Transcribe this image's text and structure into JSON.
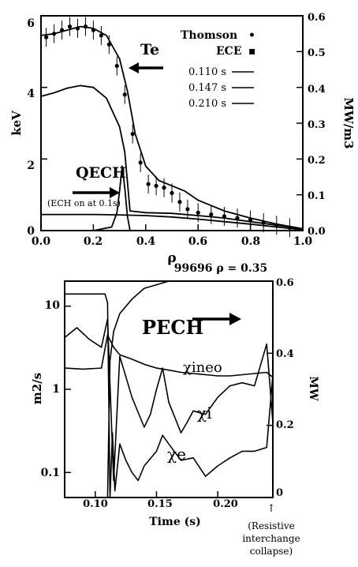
{
  "chart_data": [
    {
      "type": "line",
      "xlabel": "ρ",
      "ylabel": "keV",
      "y2label": "MW/m3",
      "xlim": [
        0,
        1
      ],
      "ylim": [
        0,
        6
      ],
      "y2lim": [
        0,
        0.6
      ],
      "xticks": [
        "0.0",
        "0.2",
        "0.4",
        "0.6",
        "0.8",
        "1.0"
      ],
      "yticks": [
        "0",
        "2",
        "4",
        "6"
      ],
      "y2ticks": [
        "0.0",
        "0.1",
        "0.2",
        "0.3",
        "0.4",
        "0.5",
        "0.6"
      ],
      "legend_position": "top-right",
      "legend_markers": [
        {
          "label": "Thomson",
          "symbol": "•"
        },
        {
          "label": "ECE",
          "symbol": "▪"
        }
      ],
      "legend_times": [
        "0.110 s",
        "0.147 s",
        "0.210 s"
      ],
      "annotations": {
        "te_label": "Te",
        "q_label": "QECH",
        "ech_note": "(ECH on at 0.1s)"
      },
      "series": [
        {
          "name": "0.110 s",
          "x": [
            0,
            0.1,
            0.2,
            0.3,
            0.4,
            0.5,
            0.6,
            0.7,
            0.8,
            0.9,
            1.0
          ],
          "values": [
            0.45,
            0.45,
            0.45,
            0.44,
            0.42,
            0.38,
            0.32,
            0.25,
            0.18,
            0.1,
            0.02
          ]
        },
        {
          "name": "0.147 s",
          "x": [
            0,
            0.05,
            0.1,
            0.15,
            0.2,
            0.25,
            0.3,
            0.32,
            0.34,
            0.4,
            0.5,
            0.6,
            0.7,
            0.8,
            0.9,
            1.0
          ],
          "values": [
            3.75,
            3.85,
            3.98,
            4.05,
            4.0,
            3.7,
            2.9,
            2.2,
            0.55,
            0.5,
            0.48,
            0.42,
            0.35,
            0.25,
            0.15,
            0.05
          ]
        },
        {
          "name": "0.210 s",
          "x": [
            0,
            0.05,
            0.1,
            0.15,
            0.2,
            0.25,
            0.3,
            0.33,
            0.36,
            0.4,
            0.45,
            0.5,
            0.55,
            0.6,
            0.7,
            0.8,
            0.9,
            1.0
          ],
          "values": [
            5.45,
            5.5,
            5.6,
            5.7,
            5.65,
            5.45,
            4.8,
            3.9,
            2.7,
            1.8,
            1.4,
            1.25,
            1.1,
            0.85,
            0.55,
            0.35,
            0.18,
            0.05
          ]
        },
        {
          "name": "QECH",
          "axis": "right",
          "x": [
            0.0,
            0.2,
            0.27,
            0.29,
            0.3,
            0.31,
            0.32,
            0.33,
            0.34
          ],
          "values": [
            0.0,
            0.0,
            0.01,
            0.05,
            0.11,
            0.18,
            0.12,
            0.04,
            0.0
          ]
        }
      ],
      "points": {
        "x": [
          0.02,
          0.05,
          0.08,
          0.11,
          0.14,
          0.17,
          0.2,
          0.23,
          0.26,
          0.29,
          0.32,
          0.35,
          0.38,
          0.41,
          0.44,
          0.47,
          0.5,
          0.53,
          0.56,
          0.6,
          0.65,
          0.7,
          0.75,
          0.8,
          0.85,
          0.9,
          0.95
        ],
        "y": [
          5.4,
          5.5,
          5.6,
          5.7,
          5.65,
          5.7,
          5.6,
          5.45,
          5.2,
          4.6,
          3.8,
          2.7,
          1.9,
          1.3,
          1.25,
          1.2,
          1.05,
          0.8,
          0.6,
          0.5,
          0.45,
          0.4,
          0.35,
          0.3,
          0.22,
          0.15,
          0.08
        ]
      }
    },
    {
      "type": "line",
      "title": "99696  ρ = 0.35",
      "xlabel": "Time (s)",
      "ylabel": "m2/s",
      "y2label": "MW",
      "xlim": [
        0.075,
        0.245
      ],
      "ylim": [
        0.05,
        20
      ],
      "ylog": true,
      "y2lim": [
        0,
        0.6
      ],
      "xticks": [
        "0.10",
        "0.15",
        "0.20"
      ],
      "yticks": [
        "0.1",
        "1",
        "10"
      ],
      "y2ticks": [
        "0",
        "0.2",
        "0.4",
        "0.6"
      ],
      "annotations": {
        "p_label": "PECH",
        "chi_neo_label": "χineo",
        "chi_i_label": "χi",
        "chi_e_label": "χe",
        "resistive_note": [
          "(Resistive",
          "interchange",
          "collapse)"
        ],
        "arrow_glyph": "↑"
      },
      "series": [
        {
          "name": "PECH",
          "axis": "right",
          "x": [
            0.075,
            0.1,
            0.105,
            0.11,
            0.112,
            0.115,
            0.12,
            0.13,
            0.14,
            0.15,
            0.16,
            0.18,
            0.2,
            0.22,
            0.245
          ],
          "values": [
            0.0,
            0.0,
            0.0,
            0.0,
            0.38,
            0.46,
            0.51,
            0.55,
            0.58,
            0.59,
            0.6,
            0.6,
            0.6,
            0.6,
            0.6
          ]
        },
        {
          "name": "χineo",
          "x": [
            0.075,
            0.09,
            0.105,
            0.11,
            0.115,
            0.12,
            0.13,
            0.14,
            0.15,
            0.16,
            0.17,
            0.18,
            0.19,
            0.2,
            0.21,
            0.22,
            0.23,
            0.24,
            0.245
          ],
          "values": [
            1.8,
            1.75,
            1.8,
            4.5,
            3.2,
            2.6,
            2.3,
            2.0,
            1.8,
            1.7,
            1.6,
            1.55,
            1.5,
            1.45,
            1.45,
            1.5,
            1.55,
            1.6,
            1.4
          ]
        },
        {
          "name": "χi",
          "x": [
            0.075,
            0.085,
            0.095,
            0.105,
            0.11,
            0.115,
            0.12,
            0.13,
            0.14,
            0.145,
            0.15,
            0.155,
            0.16,
            0.17,
            0.175,
            0.18,
            0.19,
            0.2,
            0.21,
            0.22,
            0.23,
            0.24,
            0.245
          ],
          "values": [
            4.2,
            5.5,
            4.0,
            3.2,
            7.0,
            0.08,
            2.5,
            0.8,
            0.35,
            0.5,
            1.0,
            1.8,
            0.7,
            0.3,
            0.4,
            0.55,
            0.5,
            0.8,
            1.1,
            1.2,
            1.1,
            3.5,
            0.4
          ]
        },
        {
          "name": "χe",
          "x": [
            0.075,
            0.1,
            0.108,
            0.11,
            0.112,
            0.114,
            0.116,
            0.12,
            0.125,
            0.13,
            0.135,
            0.14,
            0.15,
            0.155,
            0.16,
            0.17,
            0.18,
            0.19,
            0.2,
            0.21,
            0.22,
            0.23,
            0.24,
            0.245
          ],
          "values": [
            14,
            14,
            14,
            11,
            0.05,
            0.3,
            0.06,
            0.22,
            0.14,
            0.1,
            0.08,
            0.12,
            0.18,
            0.28,
            0.22,
            0.14,
            0.15,
            0.09,
            0.12,
            0.15,
            0.18,
            0.18,
            0.2,
            1.5
          ]
        }
      ]
    }
  ]
}
